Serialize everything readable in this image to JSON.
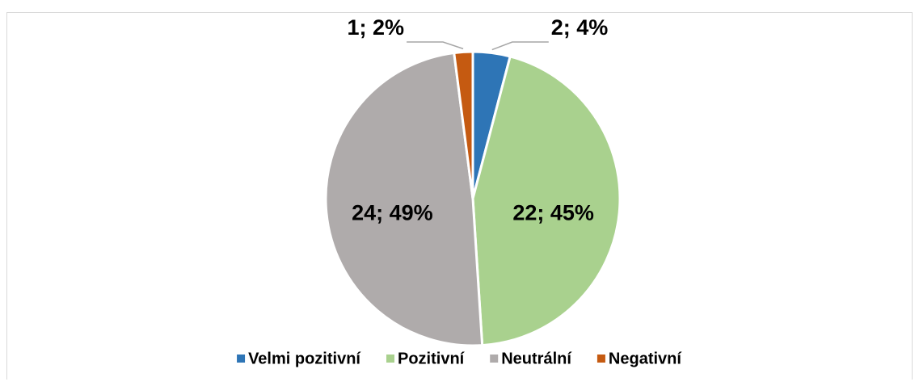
{
  "chart_data": {
    "type": "pie",
    "categories": [
      "Velmi pozitivní",
      "Pozitivní",
      "Neutrální",
      "Negativní"
    ],
    "values": [
      2,
      22,
      24,
      1
    ],
    "value_labels": [
      "2; 4%",
      "22; 45%",
      "24; 49%",
      "1; 2%"
    ],
    "colors": [
      "#2e75b6",
      "#a9d18e",
      "#afabab",
      "#c55a11"
    ],
    "legend": "bottom"
  }
}
